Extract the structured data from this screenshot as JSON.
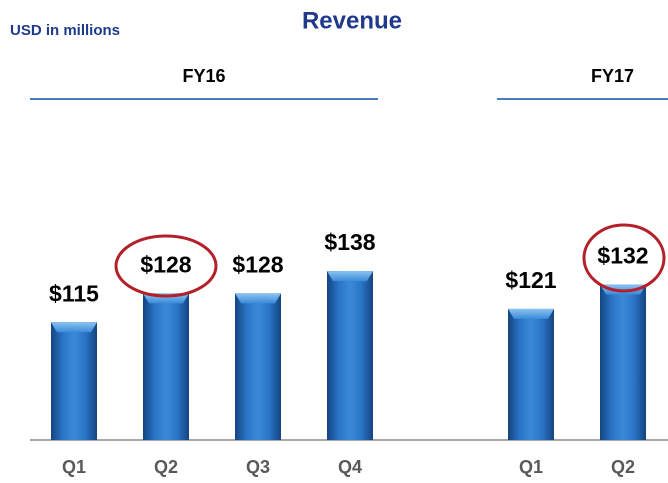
{
  "chart_data": {
    "type": "bar",
    "title": "Revenue",
    "subtitle": "USD in millions",
    "ylim": [
      62,
      215
    ],
    "color": "#2166b8",
    "groups": [
      {
        "name": "FY16",
        "categories": [
          "Q1",
          "Q2",
          "Q3",
          "Q4"
        ],
        "values": [
          115,
          128,
          128,
          138
        ],
        "value_labels": [
          "$115",
          "$128",
          "$128",
          "$138"
        ]
      },
      {
        "name": "FY17",
        "categories": [
          "Q1",
          "Q2"
        ],
        "values": [
          121,
          132
        ],
        "value_labels": [
          "$121",
          "$132"
        ]
      }
    ]
  }
}
